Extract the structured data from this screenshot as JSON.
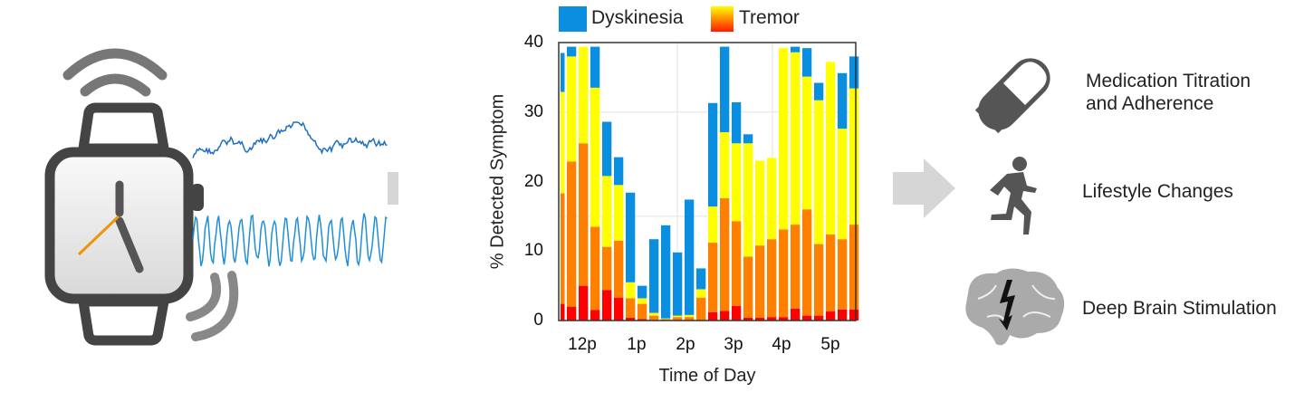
{
  "legend": {
    "dyskinesia": {
      "label": "Dyskinesia",
      "color": "#0a8fe0"
    },
    "tremor": {
      "label": "Tremor",
      "gradient": [
        "#ffff00",
        "#ff7a00",
        "#ff0000"
      ]
    }
  },
  "outcomes": [
    {
      "icon": "pill-icon",
      "label_line1": "Medication Titration",
      "label_line2": "and Adherence"
    },
    {
      "icon": "running-person-icon",
      "label_line1": "Lifestyle Changes"
    },
    {
      "icon": "brain-lightning-icon",
      "label_line1": "Deep Brain Stimulation"
    }
  ],
  "chart_data": {
    "type": "bar",
    "stacked": true,
    "xlabel": "Time of Day",
    "ylabel": "% Detected Symptom",
    "ylim": [
      0,
      40
    ],
    "yticks": [
      0,
      10,
      20,
      30,
      40
    ],
    "xtick_labels": [
      "12p",
      "1p",
      "2p",
      "3p",
      "4p",
      "5p"
    ],
    "grid": true,
    "legend_position": "top",
    "series": [
      {
        "key": "tremor_severe",
        "color": "#ff0000",
        "values": [
          2.4,
          2.0,
          5.0,
          1.5,
          4.4,
          3.3,
          0.4,
          0.2,
          0.1,
          0,
          0,
          0,
          0,
          1.2,
          1.4,
          2.1,
          0.4,
          0.4,
          0.5,
          0.5,
          1.7,
          0.7,
          0.7,
          1.3,
          1.6,
          1.6
        ]
      },
      {
        "key": "tremor_moderate",
        "color": "#ff7f00",
        "values": [
          15.9,
          20.9,
          20.5,
          12.0,
          6.2,
          8.2,
          2.8,
          2.2,
          0.6,
          0.2,
          0.5,
          0.5,
          3.3,
          10.0,
          16.2,
          12.2,
          8.8,
          10.4,
          11.2,
          12.6,
          12.1,
          15.3,
          10.3,
          11.1,
          10.1,
          12.2
        ]
      },
      {
        "key": "tremor_mild",
        "color": "#ffff00",
        "values": [
          14.6,
          15.1,
          13.9,
          20.0,
          10.2,
          8.0,
          2.3,
          0.8,
          0.4,
          0.1,
          0.2,
          0.3,
          1.2,
          5.2,
          9.5,
          11.2,
          16.3,
          12.2,
          11.7,
          26.1,
          24.8,
          19.1,
          20.7,
          24.8,
          15.9,
          19.6
        ]
      },
      {
        "key": "dyskinesia",
        "name": "Dyskinesia",
        "color": "#0a8fe0",
        "values": [
          5.6,
          1.4,
          0,
          5.9,
          7.8,
          4.0,
          12.9,
          1.8,
          10.6,
          13.4,
          9.1,
          16.6,
          3.0,
          14.9,
          12.3,
          5.9,
          1.3,
          0,
          0,
          0,
          0.8,
          4.1,
          2.5,
          0,
          8.0,
          4.6
        ]
      }
    ]
  }
}
